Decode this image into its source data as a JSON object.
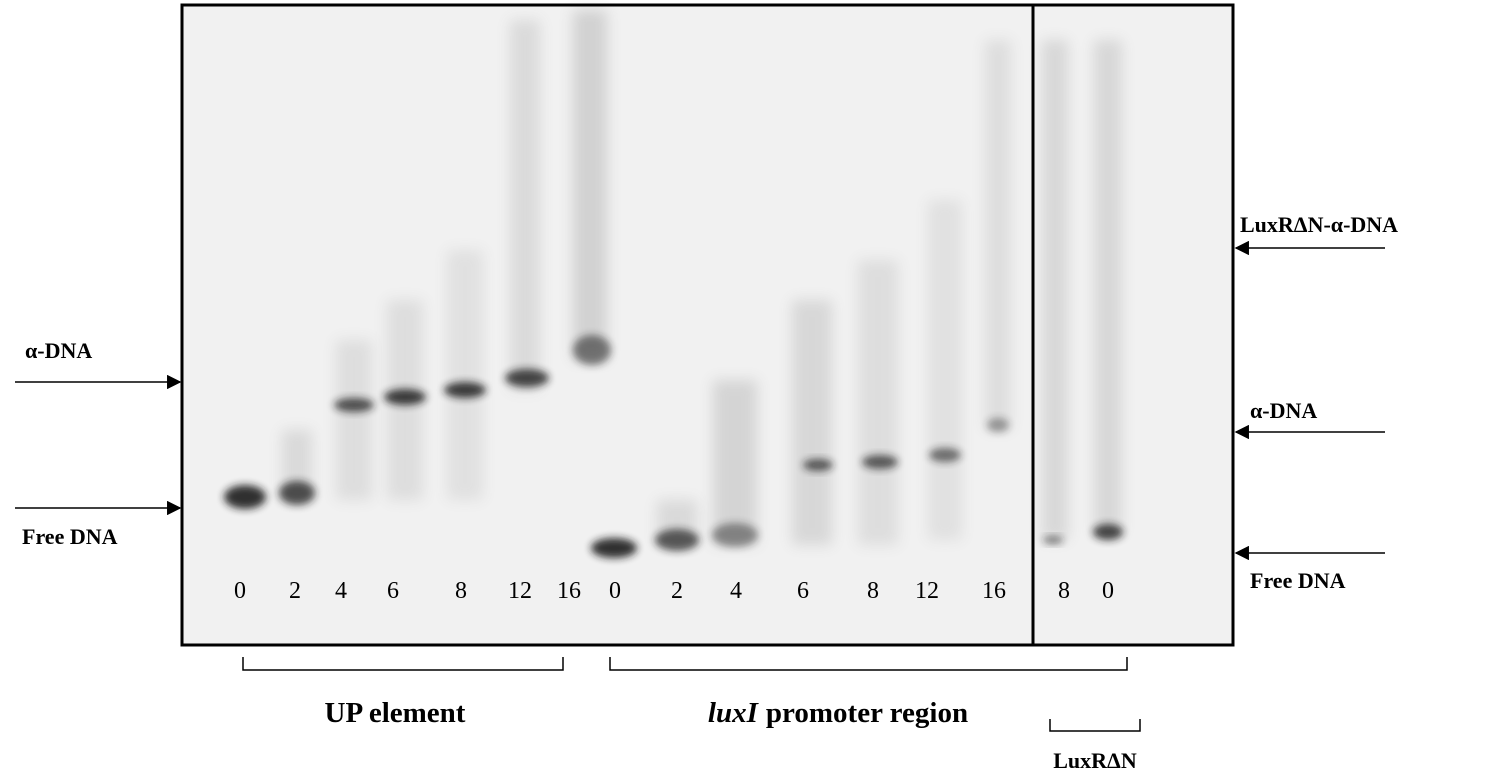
{
  "left_labels": {
    "upper": "α-DNA",
    "lower": "Free DNA"
  },
  "right_labels": {
    "top": "LuxRΔN-α-DNA",
    "middle": "α-DNA",
    "bottom": "Free DNA"
  },
  "lanes": {
    "up_element": [
      "0",
      "2",
      "4",
      "6",
      "8",
      "12",
      "16"
    ],
    "luxI_promoter": [
      "0",
      "2",
      "4",
      "6",
      "8",
      "12",
      "16"
    ],
    "luxR_dn": [
      "8",
      "0"
    ]
  },
  "groups": {
    "up_element": "UP element",
    "luxI_promoter": {
      "italic": "luxI",
      "rest": "promoter region"
    },
    "luxR_dn": "LuxRΔN"
  }
}
